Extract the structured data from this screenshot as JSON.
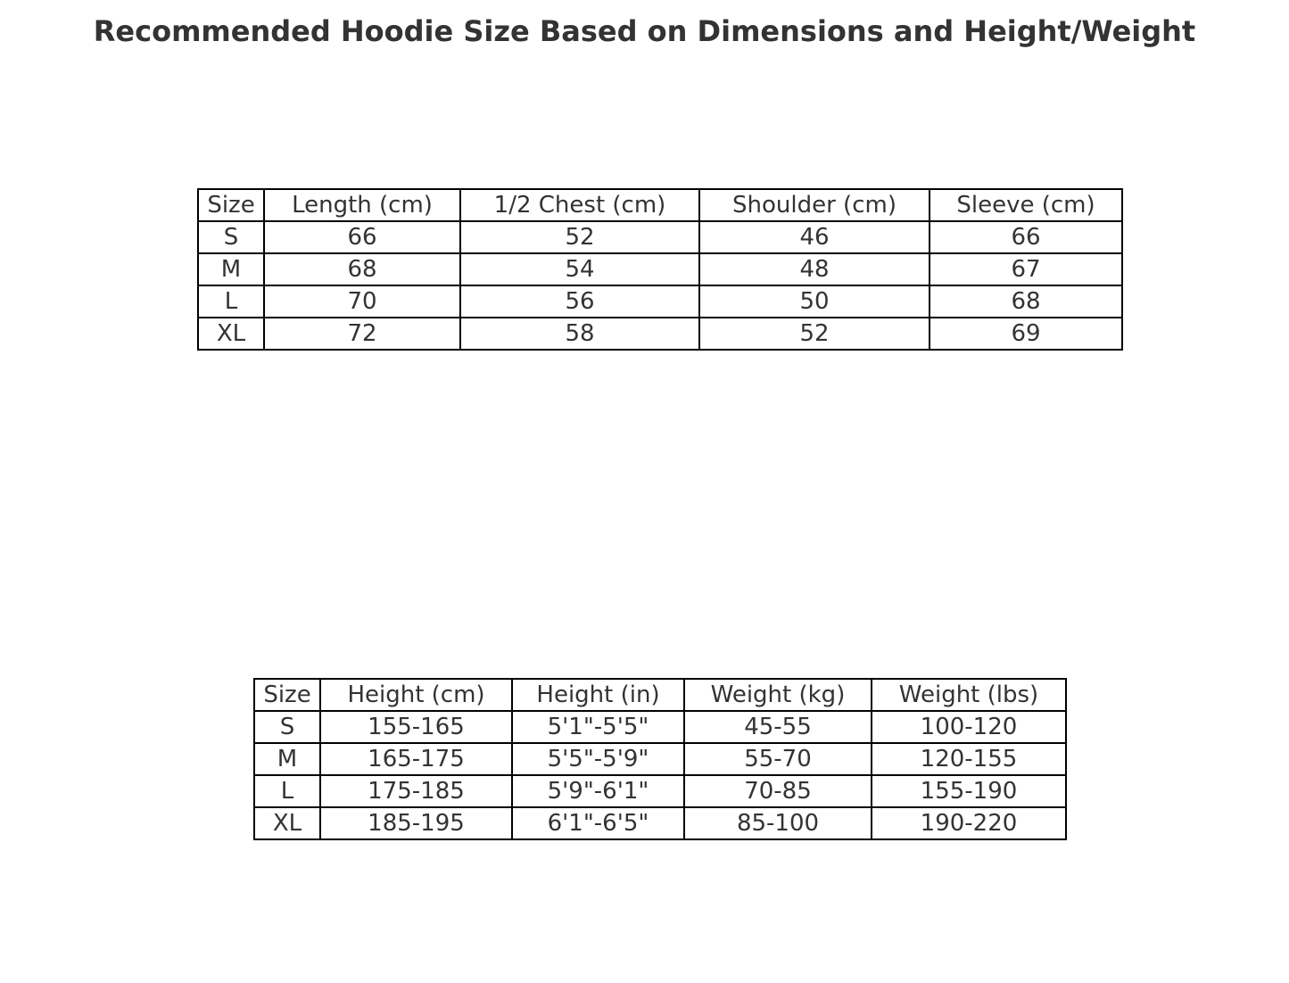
{
  "chart_data": [
    {
      "type": "table",
      "title": "Recommended Hoodie Size Based on Dimensions and Height/Weight",
      "columns": [
        "Size",
        "Length (cm)",
        "1/2 Chest (cm)",
        "Shoulder (cm)",
        "Sleeve (cm)"
      ],
      "rows": [
        [
          "S",
          "66",
          "52",
          "46",
          "66"
        ],
        [
          "M",
          "68",
          "54",
          "48",
          "67"
        ],
        [
          "L",
          "70",
          "56",
          "50",
          "68"
        ],
        [
          "XL",
          "72",
          "58",
          "52",
          "69"
        ]
      ]
    },
    {
      "type": "table",
      "columns": [
        "Size",
        "Height (cm)",
        "Height (in)",
        "Weight (kg)",
        "Weight (lbs)"
      ],
      "rows": [
        [
          "S",
          "155-165",
          "5'1\"-5'5\"",
          "45-55",
          "100-120"
        ],
        [
          "M",
          "165-175",
          "5'5\"-5'9\"",
          "55-70",
          "120-155"
        ],
        [
          "L",
          "175-185",
          "5'9\"-6'1\"",
          "70-85",
          "155-190"
        ],
        [
          "XL",
          "185-195",
          "6'1\"-6'5\"",
          "85-100",
          "190-220"
        ]
      ]
    }
  ]
}
